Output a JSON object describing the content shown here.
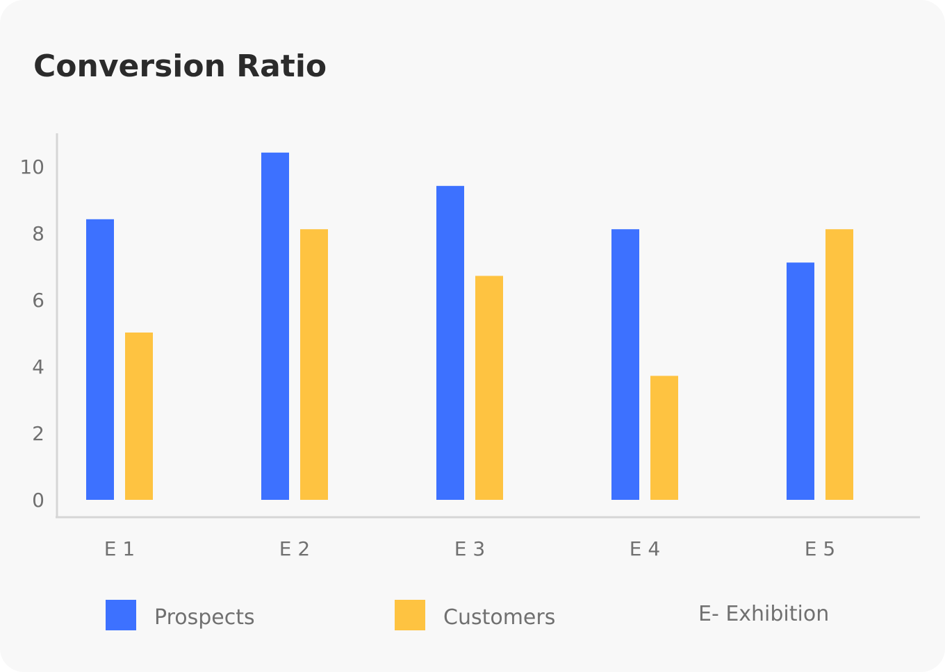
{
  "card": {
    "title": "Conversion Ratio"
  },
  "legend": {
    "note": "E- Exhibition"
  },
  "colors": {
    "prospects": "#3d71ff",
    "customers": "#fec341",
    "axis": "#d6d6d6",
    "tick_text": "#707070"
  },
  "chart_data": {
    "type": "bar",
    "categories": [
      "E 1",
      "E 2",
      "E 3",
      "E 4",
      "E 5"
    ],
    "series": [
      {
        "name": "Prospects",
        "values": [
          8.4,
          10.4,
          9.4,
          8.1,
          7.1
        ]
      },
      {
        "name": "Customers",
        "values": [
          5.0,
          8.1,
          6.7,
          3.7,
          8.1
        ]
      }
    ],
    "yticks": [
      "0",
      "2",
      "4",
      "6",
      "8",
      "10"
    ],
    "ylim": [
      0,
      10
    ],
    "grid": false,
    "legend_position": "bottom"
  }
}
